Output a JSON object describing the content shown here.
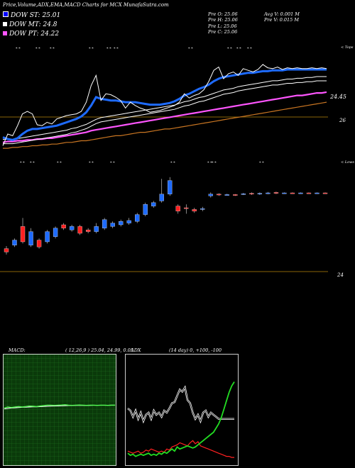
{
  "header": {
    "title": "Price,Volume,ADX,EMA,MACD Charts for MCX  MunafaSutra.com",
    "legend": [
      {
        "label": "DOW ST: 25.01",
        "color": "#0000ff"
      },
      {
        "label": "DOW MT: 24.8",
        "color": "#ffffff"
      },
      {
        "label": "DOW PT: 24.22",
        "color": "#ff55ff"
      }
    ],
    "ohlc": {
      "open": "Pre   O: 25.06",
      "high": "Pre   H: 25.06",
      "low": "Pre   L: 25.06",
      "close": "Pre   C: 25.06"
    },
    "avg_volume": "Avg V: 0.001 M",
    "pre_volume": "Pre   V: 0.015 M"
  },
  "chart_data": [
    {
      "type": "line",
      "name": "price-ema",
      "labels": {
        "upper_level": "24.45",
        "lower_level": "26",
        "tops": "< Tops",
        "lows": "< Lows"
      },
      "close": [
        24.58,
        24.72,
        24.7,
        24.82,
        24.96,
        24.99,
        24.96,
        24.83,
        24.82,
        24.86,
        24.84,
        24.9,
        24.92,
        24.94,
        24.95,
        24.96,
        24.99,
        25.1,
        25.3,
        25.42,
        25.12,
        25.2,
        25.19,
        25.16,
        25.12,
        25.03,
        25.1,
        25.06,
        25.03,
        25.01,
        24.98,
        24.99,
        25.0,
        25.02,
        25.04,
        25.06,
        25.1,
        25.2,
        25.15,
        25.18,
        25.2,
        25.25,
        25.35,
        25.48,
        25.52,
        25.38,
        25.44,
        25.46,
        25.42,
        25.5,
        25.48,
        25.46,
        25.49,
        25.55,
        25.51,
        25.5,
        25.52,
        25.49,
        25.51,
        25.5,
        25.51,
        25.5,
        25.5,
        25.51,
        25.5,
        25.51,
        25.5
      ],
      "ema_fast": [
        24.68,
        24.66,
        24.65,
        24.67,
        24.72,
        24.76,
        24.78,
        24.78,
        24.79,
        24.8,
        24.81,
        24.82,
        24.84,
        24.86,
        24.88,
        24.9,
        24.93,
        24.98,
        25.06,
        25.16,
        25.14,
        25.13,
        25.12,
        25.12,
        25.11,
        25.1,
        25.1,
        25.1,
        25.09,
        25.08,
        25.07,
        25.07,
        25.07,
        25.08,
        25.09,
        25.11,
        25.14,
        25.18,
        25.2,
        25.23,
        25.26,
        25.28,
        25.31,
        25.35,
        25.38,
        25.4,
        25.41,
        25.42,
        25.43,
        25.44,
        25.45,
        25.45,
        25.46,
        25.47,
        25.47,
        25.48,
        25.48,
        25.48,
        25.49,
        25.49,
        25.49,
        25.49,
        25.49,
        25.49,
        25.49,
        25.49,
        25.49
      ],
      "ema_mid": [
        24.63,
        24.63,
        24.63,
        24.64,
        24.65,
        24.66,
        24.67,
        24.68,
        24.69,
        24.7,
        24.71,
        24.72,
        24.73,
        24.74,
        24.76,
        24.77,
        24.79,
        24.81,
        24.84,
        24.87,
        24.89,
        24.9,
        24.91,
        24.92,
        24.93,
        24.94,
        24.95,
        24.96,
        24.97,
        24.98,
        24.99,
        25.0,
        25.01,
        25.02,
        25.03,
        25.04,
        25.06,
        25.08,
        25.09,
        25.11,
        25.13,
        25.14,
        25.16,
        25.18,
        25.2,
        25.22,
        25.23,
        25.24,
        25.26,
        25.27,
        25.28,
        25.29,
        25.3,
        25.31,
        25.32,
        25.33,
        25.33,
        25.34,
        25.35,
        25.35,
        25.36,
        25.36,
        25.37,
        25.37,
        25.38,
        25.38,
        25.38
      ],
      "ema_slow": [
        24.62,
        24.63,
        24.63,
        24.64,
        24.64,
        24.65,
        24.65,
        24.66,
        24.66,
        24.67,
        24.67,
        24.68,
        24.69,
        24.7,
        24.71,
        24.72,
        24.73,
        24.74,
        24.76,
        24.77,
        24.78,
        24.79,
        24.8,
        24.81,
        24.82,
        24.83,
        24.84,
        24.85,
        24.86,
        24.87,
        24.88,
        24.89,
        24.9,
        24.91,
        24.92,
        24.93,
        24.94,
        24.95,
        24.96,
        24.97,
        24.98,
        24.99,
        25.0,
        25.01,
        25.02,
        25.03,
        25.04,
        25.05,
        25.06,
        25.07,
        25.08,
        25.09,
        25.1,
        25.11,
        25.12,
        25.13,
        25.14,
        25.15,
        25.16,
        25.17,
        25.18,
        25.18,
        25.19,
        25.2,
        25.21,
        25.21,
        25.22
      ],
      "ema_long": [
        24.55,
        24.55,
        24.56,
        24.56,
        24.57,
        24.57,
        24.58,
        24.58,
        24.59,
        24.59,
        24.6,
        24.6,
        24.61,
        24.62,
        24.62,
        24.63,
        24.64,
        24.64,
        24.65,
        24.66,
        24.67,
        24.68,
        24.69,
        24.7,
        24.7,
        24.71,
        24.72,
        24.73,
        24.74,
        24.74,
        24.75,
        24.76,
        24.77,
        24.78,
        24.78,
        24.79,
        24.8,
        24.81,
        24.82,
        24.83,
        24.84,
        24.85,
        24.86,
        24.87,
        24.88,
        24.89,
        24.9,
        24.91,
        24.92,
        24.93,
        24.94,
        24.95,
        24.96,
        24.97,
        24.98,
        24.99,
        25.0,
        25.01,
        25.02,
        25.03,
        25.04,
        25.05,
        25.06,
        25.07,
        25.08,
        25.09,
        25.1
      ]
    },
    {
      "type": "candlestick",
      "name": "price-candles",
      "labels": {
        "level": "24"
      },
      "candles": [
        {
          "o": 24.62,
          "c": 24.58,
          "h": 24.65,
          "l": 24.55
        },
        {
          "o": 24.66,
          "c": 24.72,
          "h": 24.74,
          "l": 24.64
        },
        {
          "o": 24.88,
          "c": 24.7,
          "h": 24.98,
          "l": 24.68
        },
        {
          "o": 24.66,
          "c": 24.82,
          "h": 24.86,
          "l": 24.64
        },
        {
          "o": 24.72,
          "c": 24.64,
          "h": 24.74,
          "l": 24.62
        },
        {
          "o": 24.7,
          "c": 24.82,
          "h": 24.84,
          "l": 24.68
        },
        {
          "o": 24.76,
          "c": 24.86,
          "h": 24.88,
          "l": 24.74
        },
        {
          "o": 24.9,
          "c": 24.86,
          "h": 24.92,
          "l": 24.84
        },
        {
          "o": 24.84,
          "c": 24.88,
          "h": 24.9,
          "l": 24.82
        },
        {
          "o": 24.88,
          "c": 24.8,
          "h": 24.9,
          "l": 24.78
        },
        {
          "o": 24.84,
          "c": 24.82,
          "h": 24.86,
          "l": 24.8
        },
        {
          "o": 24.82,
          "c": 24.88,
          "h": 24.92,
          "l": 24.8
        },
        {
          "o": 24.86,
          "c": 24.96,
          "h": 24.98,
          "l": 24.84
        },
        {
          "o": 24.88,
          "c": 24.92,
          "h": 24.94,
          "l": 24.86
        },
        {
          "o": 24.9,
          "c": 24.94,
          "h": 24.96,
          "l": 24.88
        },
        {
          "o": 24.92,
          "c": 24.95,
          "h": 24.98,
          "l": 24.9
        },
        {
          "o": 24.94,
          "c": 25.02,
          "h": 25.04,
          "l": 24.92
        },
        {
          "o": 25.02,
          "c": 25.14,
          "h": 25.16,
          "l": 25.0
        },
        {
          "o": 25.12,
          "c": 25.16,
          "h": 25.18,
          "l": 25.1
        },
        {
          "o": 25.18,
          "c": 25.26,
          "h": 25.44,
          "l": 25.16
        },
        {
          "o": 25.26,
          "c": 25.42,
          "h": 25.46,
          "l": 25.24
        },
        {
          "o": 25.12,
          "c": 25.06,
          "h": 25.14,
          "l": 25.03
        },
        {
          "o": 25.1,
          "c": 25.09,
          "h": 25.14,
          "l": 25.03
        },
        {
          "o": 25.08,
          "c": 25.06,
          "h": 25.1,
          "l": 25.04
        },
        {
          "o": 25.08,
          "c": 25.09,
          "h": 25.11,
          "l": 25.06
        },
        {
          "o": 25.24,
          "c": 25.26,
          "h": 25.28,
          "l": 25.22
        },
        {
          "o": 25.26,
          "c": 25.25,
          "h": 25.27,
          "l": 25.24
        },
        {
          "o": 25.25,
          "c": 25.255,
          "h": 25.265,
          "l": 25.245
        },
        {
          "o": 25.255,
          "c": 25.25,
          "h": 25.26,
          "l": 25.24
        },
        {
          "o": 25.26,
          "c": 25.265,
          "h": 25.275,
          "l": 25.25
        },
        {
          "o": 25.27,
          "c": 25.26,
          "h": 25.28,
          "l": 25.25
        },
        {
          "o": 25.26,
          "c": 25.27,
          "h": 25.28,
          "l": 25.25
        },
        {
          "o": 25.27,
          "c": 25.275,
          "h": 25.285,
          "l": 25.26
        },
        {
          "o": 25.28,
          "c": 25.27,
          "h": 25.29,
          "l": 25.26
        },
        {
          "o": 25.27,
          "c": 25.275,
          "h": 25.28,
          "l": 25.265
        },
        {
          "o": 25.275,
          "c": 25.27,
          "h": 25.28,
          "l": 25.265
        },
        {
          "o": 25.27,
          "c": 25.275,
          "h": 25.28,
          "l": 25.265
        },
        {
          "o": 25.275,
          "c": 25.27,
          "h": 25.28,
          "l": 25.265
        },
        {
          "o": 25.27,
          "c": 25.275,
          "h": 25.28,
          "l": 25.265
        },
        {
          "o": 25.275,
          "c": 25.27,
          "h": 25.28,
          "l": 25.265
        }
      ]
    },
    {
      "type": "line",
      "name": "macd",
      "title": "MACD:",
      "params": "( 12,26,9 ) 25.04,  24.99,  0.05",
      "macd": [
        0.02,
        0.03,
        0.025,
        0.03,
        0.035,
        0.03,
        0.035,
        0.04,
        0.038,
        0.035,
        0.04,
        0.045,
        0.05,
        0.05,
        0.048,
        0.05,
        0.052,
        0.055,
        0.05,
        0.048,
        0.05,
        0.052,
        0.05,
        0.048,
        0.05,
        0.05,
        0.048,
        0.05,
        0.05,
        0.048,
        0.05,
        0.05
      ],
      "signal": [
        0.01,
        0.015,
        0.02,
        0.022,
        0.025,
        0.027,
        0.028,
        0.03,
        0.032,
        0.033,
        0.034,
        0.036,
        0.038,
        0.04,
        0.041,
        0.042,
        0.043,
        0.045,
        0.046,
        0.046,
        0.047,
        0.047,
        0.048,
        0.048,
        0.048,
        0.049,
        0.049,
        0.049,
        0.049,
        0.049,
        0.05,
        0.05
      ],
      "ylim": [
        -0.6,
        0.6
      ]
    },
    {
      "type": "line",
      "name": "adx",
      "title": "ADX",
      "params": "(14 day) 0, +100, -100",
      "dx": [
        50,
        48,
        42,
        48,
        40,
        46,
        38,
        44,
        46,
        40,
        48,
        44,
        46,
        42,
        48,
        46,
        50,
        55,
        56,
        62,
        68,
        66,
        70,
        58,
        55,
        46,
        40,
        44,
        38,
        46,
        48,
        42,
        46,
        44,
        42,
        40,
        40,
        40,
        40,
        40,
        40,
        40
      ],
      "di_plus": [
        8,
        6,
        7,
        5,
        6,
        7,
        6,
        7,
        8,
        6,
        7,
        6,
        8,
        7,
        9,
        8,
        10,
        12,
        10,
        14,
        12,
        13,
        14,
        15,
        14,
        13,
        14,
        16,
        18,
        20,
        22,
        24,
        26,
        28,
        32,
        36,
        42,
        50,
        58,
        66,
        72,
        76
      ],
      "di_minus": [
        10,
        9,
        8,
        9,
        10,
        8,
        9,
        11,
        10,
        12,
        11,
        10,
        9,
        10,
        9,
        12,
        11,
        14,
        15,
        16,
        18,
        17,
        16,
        15,
        18,
        20,
        17,
        19,
        15,
        14,
        13,
        12,
        11,
        10,
        9,
        8,
        7,
        6,
        5,
        5,
        4,
        4
      ],
      "ylim": [
        0,
        100
      ]
    }
  ]
}
